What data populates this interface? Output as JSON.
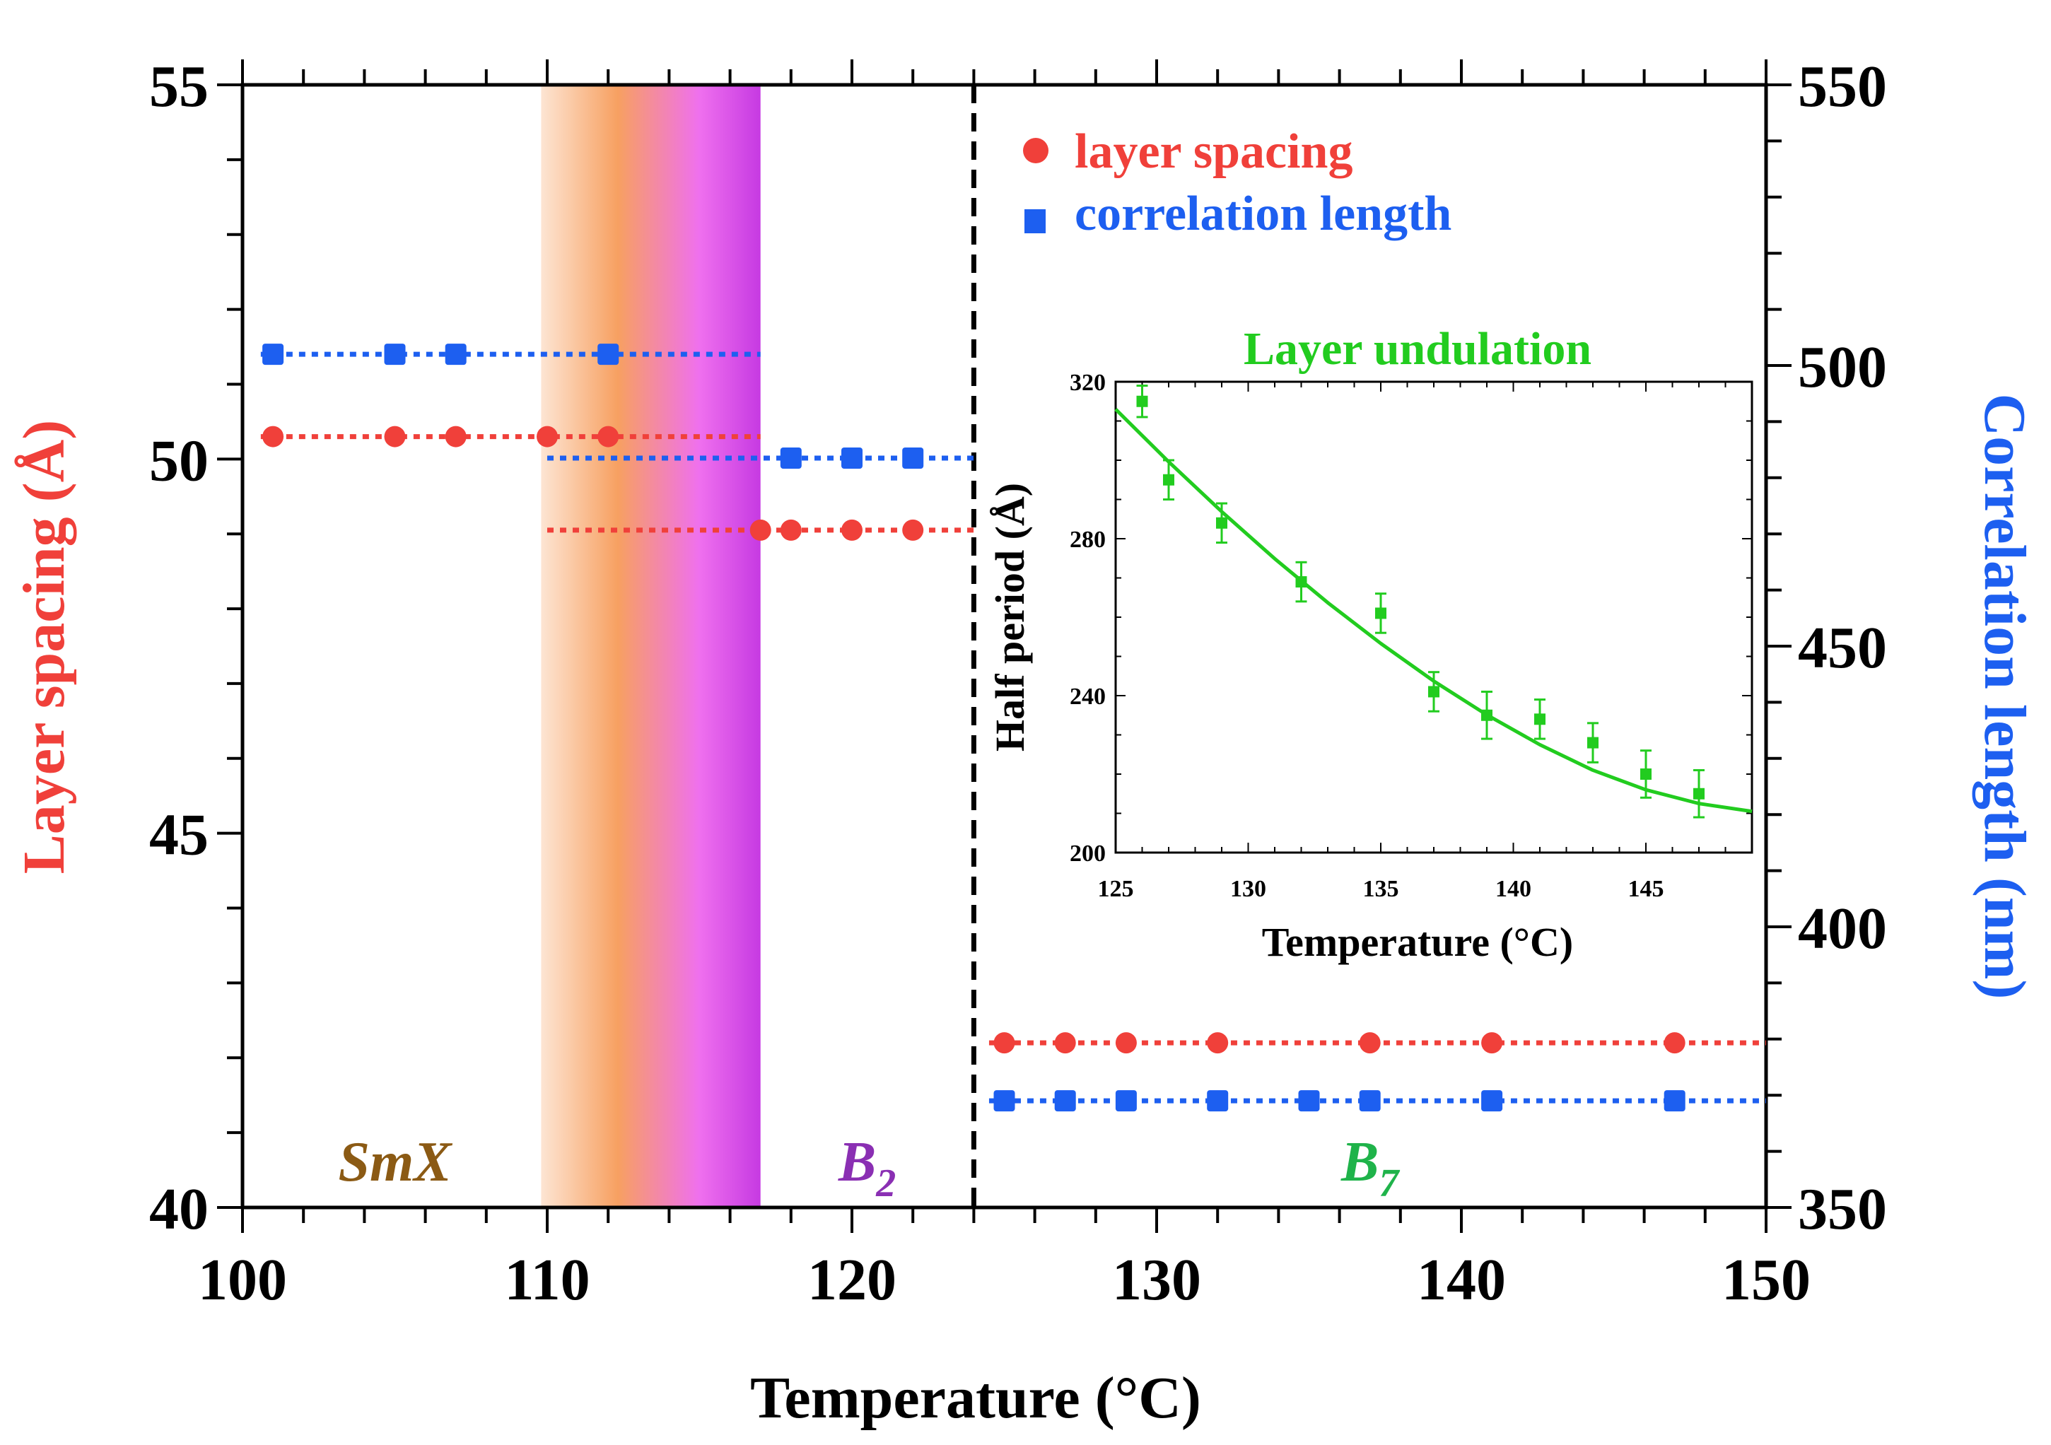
{
  "chart_data": [
    {
      "type": "scatter",
      "xlabel": "Temperature (°C)",
      "ylabel": "Layer spacing (Å)",
      "ylabel_right": "Correlation length (nm)",
      "xlim": [
        100,
        150
      ],
      "ylim": [
        40,
        55
      ],
      "ylim_right": [
        350,
        550
      ],
      "x_ticks": [
        100,
        110,
        120,
        130,
        140,
        150
      ],
      "y_ticks": [
        40,
        45,
        50,
        55
      ],
      "y_ticks_right": [
        350,
        400,
        450,
        500,
        550
      ],
      "legend": {
        "placement": "top-right",
        "entries": [
          "layer spacing",
          "correlation length"
        ]
      },
      "colors": {
        "layer_spacing": "#f0403a",
        "correlation_length": "#1d5ff0"
      },
      "series": [
        {
          "name": "layer spacing",
          "axis": "left",
          "marker": "circle",
          "segments": [
            {
              "x": [
                101,
                105,
                107,
                110,
                112
              ],
              "y": [
                50.3,
                50.3,
                50.3,
                50.3,
                50.3
              ],
              "line_x": [
                100.6,
                117
              ]
            },
            {
              "x": [
                117,
                118,
                120,
                122
              ],
              "y": [
                49.05,
                49.05,
                49.05,
                49.05
              ],
              "line_x": [
                110,
                124
              ]
            },
            {
              "x": [
                125,
                127,
                129,
                132,
                137,
                141,
                147
              ],
              "y": [
                42.2,
                42.2,
                42.2,
                42.2,
                42.2,
                42.2,
                42.2
              ],
              "line_x": [
                124.5,
                150
              ]
            }
          ]
        },
        {
          "name": "correlation length",
          "axis": "right",
          "marker": "square",
          "segments": [
            {
              "x": [
                101,
                105,
                107,
                112
              ],
              "y": [
                502,
                502,
                502,
                502
              ],
              "line_x": [
                100.6,
                117
              ]
            },
            {
              "x": [
                118,
                120,
                122
              ],
              "y": [
                483.5,
                483.5,
                483.5
              ],
              "line_x": [
                110,
                124
              ]
            },
            {
              "x": [
                125,
                127,
                129,
                132,
                135,
                137,
                141,
                147
              ],
              "y": [
                369,
                369,
                369,
                369,
                369,
                369,
                369,
                369
              ],
              "line_x": [
                124.5,
                150
              ]
            }
          ]
        }
      ],
      "phases": [
        {
          "name": "SmX",
          "sub": "",
          "x": 105,
          "color": "#8b5a14"
        },
        {
          "name": "B",
          "sub": "2",
          "x": 120.5,
          "color": "#8a2fb3"
        },
        {
          "name": "B",
          "sub": "7",
          "x": 137,
          "color": "#1fb34a"
        }
      ],
      "transition_band": {
        "x": [
          109.8,
          117
        ],
        "colors": [
          "#fde5d3",
          "#f7a061",
          "#ef70ee",
          "#c63ae2"
        ]
      },
      "transition_line_x": 124
    },
    {
      "type": "scatter",
      "title": "Layer undulation",
      "xlabel": "Temperature (°C)",
      "ylabel": "Half period (Å)",
      "xlim": [
        125,
        149
      ],
      "ylim": [
        200,
        320
      ],
      "x_ticks": [
        125,
        130,
        135,
        140,
        145
      ],
      "y_ticks": [
        200,
        240,
        280,
        320
      ],
      "color": "#22cc1f",
      "points": [
        {
          "x": 126,
          "y": 315,
          "err": 4
        },
        {
          "x": 127,
          "y": 295,
          "err": 5
        },
        {
          "x": 129,
          "y": 284,
          "err": 5
        },
        {
          "x": 132,
          "y": 269,
          "err": 5
        },
        {
          "x": 135,
          "y": 261,
          "err": 5
        },
        {
          "x": 137,
          "y": 241,
          "err": 5
        },
        {
          "x": 139,
          "y": 235,
          "err": 6
        },
        {
          "x": 141,
          "y": 234,
          "err": 5
        },
        {
          "x": 143,
          "y": 228,
          "err": 5
        },
        {
          "x": 145,
          "y": 220,
          "err": 6
        },
        {
          "x": 147,
          "y": 215,
          "err": 6
        }
      ],
      "fit": {
        "x": [
          125,
          127,
          129,
          131,
          133,
          135,
          137,
          139,
          141,
          143,
          145,
          147,
          149
        ],
        "y": [
          313,
          299.6,
          286.9,
          274.9,
          263.7,
          253.3,
          243.7,
          235.1,
          227.5,
          221,
          216,
          212.5,
          210.5
        ]
      }
    }
  ]
}
